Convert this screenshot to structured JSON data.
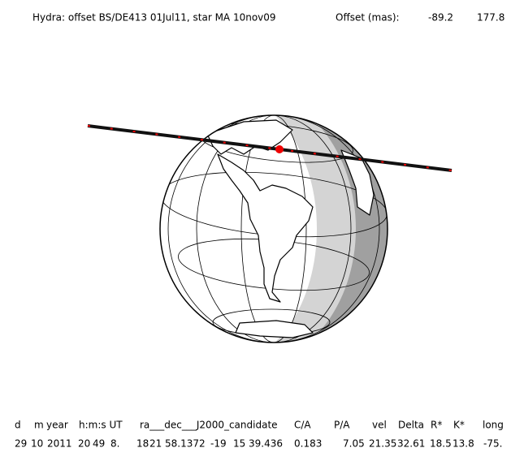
{
  "header": {
    "title": "Hydra: offset BS/DE413 01Jul11, star MA 10nov09",
    "offset_label": "Offset (mas):",
    "offset_values": [
      "-89.2",
      "177.8"
    ]
  },
  "table": {
    "columns": [
      "d",
      "m",
      "year",
      "h:m:s UT",
      "ra___dec___J2000_candidate",
      "C/A",
      "P/A",
      "vel",
      "Delta",
      "R*",
      "K*",
      "long"
    ],
    "rows": [
      [
        "29",
        "10",
        "2011",
        "20",
        "49",
        "8.",
        "18",
        "21",
        "58.1372",
        "-19",
        "15",
        "39.436",
        "0.183",
        "7.05",
        "21.35",
        "32.61",
        "18.5",
        "13.8",
        "-75."
      ]
    ]
  }
}
